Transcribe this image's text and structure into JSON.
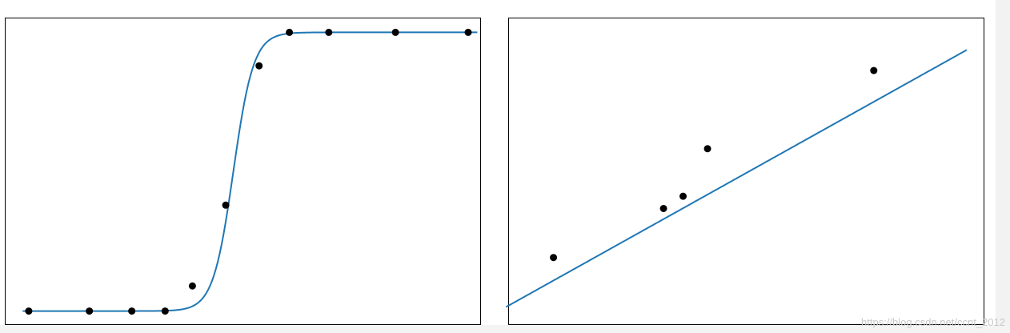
{
  "colors": {
    "line": "#1f77b4",
    "point": "#000000",
    "frame": "#000000",
    "watermark": "#c8c8c8"
  },
  "watermark": "https://blog.csdn.net/ccnt_2012",
  "chart_data": [
    {
      "type": "scatter",
      "title": "",
      "xlabel": "",
      "ylabel": "",
      "xlim": [
        0.5,
        15.5
      ],
      "ylim": [
        -0.05,
        1.05
      ],
      "grid": false,
      "legend": "none",
      "points": {
        "x": [
          1,
          3,
          4.4,
          5.5,
          6.4,
          7.5,
          8.6,
          9.6,
          10.9,
          13.1,
          15.5
        ],
        "y": [
          0.0,
          0.0,
          0.0,
          0.0,
          0.09,
          0.38,
          0.88,
          1.0,
          1.0,
          1.0,
          1.0
        ]
      },
      "fit": {
        "type": "logistic",
        "L": 1.0,
        "k": 3.0,
        "x0": 7.75,
        "x_range": [
          0.8,
          15.8
        ]
      }
    },
    {
      "type": "scatter",
      "title": "",
      "xlabel": "",
      "ylabel": "",
      "xlim": [
        0,
        100
      ],
      "ylim": [
        0,
        100
      ],
      "grid": false,
      "legend": "none",
      "points": {
        "x": [
          14.5,
          37,
          41,
          46,
          80
        ],
        "y": [
          22,
          38,
          42,
          57.5,
          83
        ]
      },
      "fit": {
        "type": "linear",
        "slope": 0.89,
        "intercept": 1.6,
        "x_range": [
          4.8,
          99
        ]
      }
    }
  ]
}
